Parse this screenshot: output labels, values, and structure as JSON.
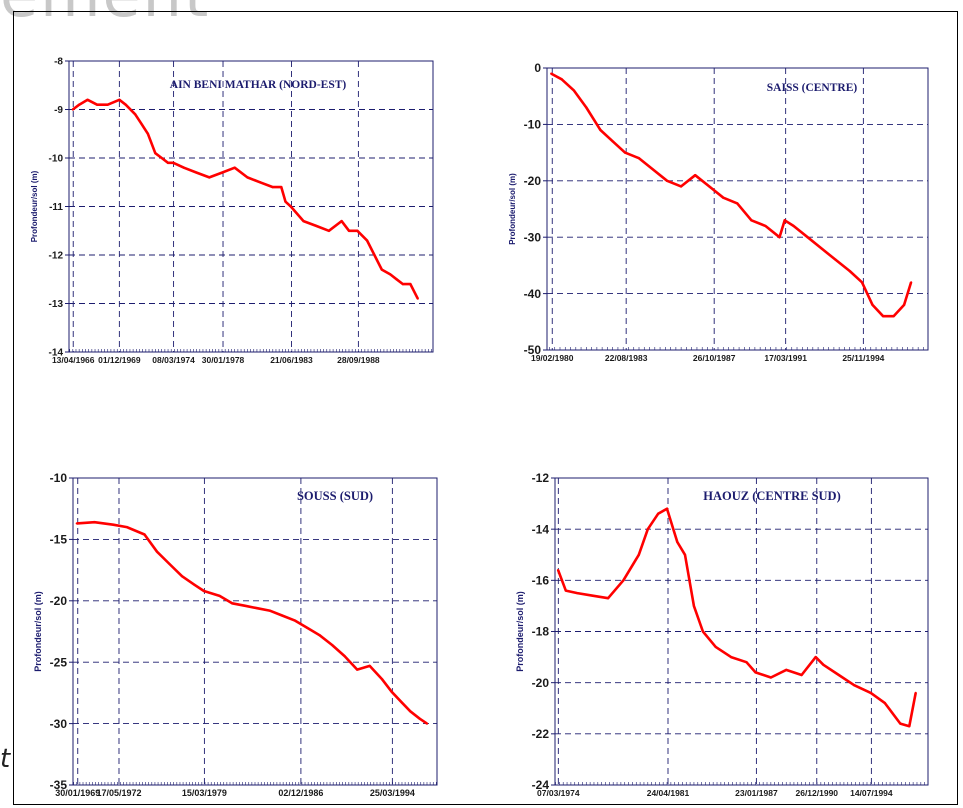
{
  "page": {
    "background_title": "ement",
    "side_char": "t"
  },
  "chart_data": [
    {
      "type": "line",
      "title": "AIN BENI MATHAR (NORD-EST)",
      "ylabel": "Profondeur/sol (m)",
      "xlabel": "",
      "x_ticks": [
        "13/04/1966",
        "01/12/1969",
        "08/03/1974",
        "30/01/1978",
        "21/06/1983",
        "28/09/1988"
      ],
      "y_ticks": [
        "-8",
        "-9",
        "-10",
        "-11",
        "-12",
        "-13",
        "-14"
      ],
      "ylim": [
        -14,
        -8
      ],
      "grid": true,
      "line_color": "#ff0000",
      "series": [
        {
          "x": [
            "1966-04",
            "1966-10",
            "1967-06",
            "1968-03",
            "1969-01",
            "1969-12",
            "1970-06",
            "1971-03",
            "1971-09",
            "1972-03",
            "1972-10",
            "1973-04",
            "1973-10",
            "1974-03",
            "1975-01",
            "1976-01",
            "1977-01",
            "1978-01",
            "1979-01",
            "1980-01",
            "1981-01",
            "1982-01",
            "1982-09",
            "1983-01",
            "1983-06",
            "1984-06",
            "1985-06",
            "1986-06",
            "1987-06",
            "1988-01",
            "1988-09",
            "1989-06",
            "1990-01",
            "1990-08",
            "1991-04",
            "1991-10",
            "1992-04",
            "1992-11",
            "1993-06"
          ],
          "y": [
            -9.0,
            -8.9,
            -8.8,
            -8.9,
            -8.9,
            -8.8,
            -8.9,
            -9.1,
            -9.3,
            -9.5,
            -9.9,
            -10.0,
            -10.1,
            -10.1,
            -10.2,
            -10.3,
            -10.4,
            -10.3,
            -10.2,
            -10.4,
            -10.5,
            -10.6,
            -10.6,
            -10.9,
            -11.0,
            -11.3,
            -11.4,
            -11.5,
            -11.3,
            -11.5,
            -11.5,
            -11.7,
            -12.0,
            -12.3,
            -12.4,
            -12.5,
            -12.6,
            -12.6,
            -12.9
          ]
        }
      ]
    },
    {
      "type": "line",
      "title": "SAISS (CENTRE)",
      "ylabel": "Profondeur/sol (m)",
      "xlabel": "",
      "x_ticks": [
        "19/02/1980",
        "22/08/1983",
        "26/10/1987",
        "17/03/1991",
        "25/11/1994"
      ],
      "y_ticks": [
        "0",
        "-10",
        "-20",
        "-30",
        "-40",
        "-50"
      ],
      "ylim": [
        -50,
        0
      ],
      "grid": true,
      "line_color": "#ff0000",
      "series": [
        {
          "x": [
            "1980-02",
            "1980-08",
            "1981-03",
            "1981-10",
            "1982-06",
            "1983-01",
            "1983-08",
            "1984-04",
            "1984-12",
            "1985-08",
            "1986-04",
            "1986-12",
            "1987-08",
            "1988-04",
            "1988-12",
            "1989-08",
            "1990-04",
            "1990-12",
            "1991-03",
            "1991-08",
            "1992-04",
            "1992-12",
            "1993-08",
            "1994-04",
            "1994-11",
            "1995-05",
            "1995-11",
            "1996-05",
            "1996-11",
            "1997-03"
          ],
          "y": [
            -1,
            -2,
            -4,
            -7,
            -11,
            -13,
            -15,
            -16,
            -18,
            -20,
            -21,
            -19,
            -21,
            -23,
            -24,
            -27,
            -28,
            -30,
            -27,
            -28,
            -30,
            -32,
            -34,
            -36,
            -38,
            -42,
            -44,
            -44,
            -42,
            -38
          ]
        }
      ]
    },
    {
      "type": "line",
      "title": "SOUSS (SUD)",
      "ylabel": "Profondeur/sol (m)",
      "xlabel": "",
      "x_ticks": [
        "30/01/1969",
        "17/05/1972",
        "15/03/1979",
        "02/12/1986",
        "25/03/1994"
      ],
      "y_ticks": [
        "-10",
        "-15",
        "-20",
        "-25",
        "-30",
        "-35"
      ],
      "ylim": [
        -35,
        -10
      ],
      "grid": true,
      "line_color": "#ff0000",
      "series": [
        {
          "x": [
            "1969-01",
            "1970-06",
            "1971-12",
            "1973-01",
            "1974-06",
            "1975-06",
            "1976-06",
            "1977-06",
            "1978-06",
            "1979-03",
            "1980-06",
            "1981-06",
            "1982-06",
            "1983-06",
            "1984-06",
            "1985-06",
            "1986-06",
            "1987-06",
            "1988-06",
            "1989-06",
            "1990-06",
            "1991-06",
            "1992-06",
            "1993-06",
            "1994-03",
            "1995-01",
            "1995-09",
            "1996-06",
            "1997-01"
          ],
          "y": [
            -13.7,
            -13.6,
            -13.8,
            -14.0,
            -14.6,
            -16.0,
            -17.0,
            -18.0,
            -18.7,
            -19.2,
            -19.6,
            -20.2,
            -20.4,
            -20.6,
            -20.8,
            -21.2,
            -21.6,
            -22.2,
            -22.8,
            -23.6,
            -24.5,
            -25.6,
            -25.3,
            -26.4,
            -27.4,
            -28.3,
            -29.0,
            -29.6,
            -30.0
          ]
        }
      ]
    },
    {
      "type": "line",
      "title": "HAOUZ (CENTRE SUD)",
      "ylabel": "Profondeur/sol (m)",
      "xlabel": "",
      "x_ticks": [
        "07/03/1974",
        "24/04/1981",
        "23/01/1987",
        "26/12/1990",
        "14/07/1994"
      ],
      "y_ticks": [
        "-12",
        "-14",
        "-16",
        "-18",
        "-20",
        "-22",
        "-24"
      ],
      "ylim": [
        -24,
        -12
      ],
      "grid": true,
      "line_color": "#ff0000",
      "series": [
        {
          "x": [
            "1974-03",
            "1974-09",
            "1975-06",
            "1976-06",
            "1977-06",
            "1978-06",
            "1979-06",
            "1980-01",
            "1980-09",
            "1981-04",
            "1981-12",
            "1982-06",
            "1983-01",
            "1983-08",
            "1984-06",
            "1985-06",
            "1986-06",
            "1987-01",
            "1988-01",
            "1989-01",
            "1990-01",
            "1990-12",
            "1991-06",
            "1992-06",
            "1993-06",
            "1994-07",
            "1995-06",
            "1996-06",
            "1997-01",
            "1997-06"
          ],
          "y": [
            -15.6,
            -16.4,
            -16.5,
            -16.6,
            -16.7,
            -16.0,
            -15.0,
            -14.0,
            -13.4,
            -13.2,
            -14.5,
            -15.0,
            -17.0,
            -18.0,
            -18.6,
            -19.0,
            -19.2,
            -19.6,
            -19.8,
            -19.5,
            -19.7,
            -19.0,
            -19.3,
            -19.7,
            -20.1,
            -20.4,
            -20.8,
            -21.6,
            -21.7,
            -20.4
          ]
        }
      ]
    }
  ]
}
